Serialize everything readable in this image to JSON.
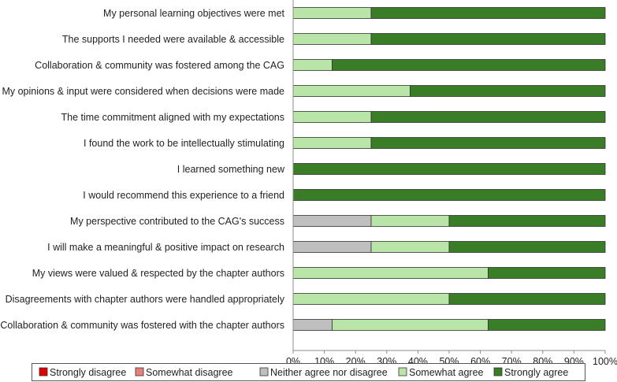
{
  "chart_data": {
    "type": "bar",
    "orientation": "horizontal",
    "stacked": true,
    "categories": [
      "My personal learning objectives were met",
      "The supports I needed were available & accessible",
      "Collaboration & community was fostered among the CAG",
      "My opinions & input were considered when decisions were made",
      "The time commitment aligned with my expectations",
      "I found the work to be intellectually stimulating",
      "I learned something new",
      "I would recommend this experience to a friend",
      "My perspective contributed to the CAG's success",
      "I will make a meaningful & positive impact on research",
      "My views were valued & respected by the chapter authors",
      "Disagreements with chapter authors were handled appropriately",
      "Collaboration & community was fostered with the chapter authors"
    ],
    "series": [
      {
        "name": "Strongly disagree",
        "color": "#e00000",
        "values": [
          0,
          0,
          0,
          0,
          0,
          0,
          0,
          0,
          0,
          0,
          0,
          0,
          0
        ]
      },
      {
        "name": "Somewhat disagree",
        "color": "#e88080",
        "values": [
          0,
          0,
          0,
          0,
          0,
          0,
          0,
          0,
          0,
          0,
          0,
          0,
          0
        ]
      },
      {
        "name": "Neither agree nor disagree",
        "color": "#bfbfbf",
        "values": [
          0,
          0,
          0,
          0,
          0,
          0,
          0,
          0,
          25,
          25,
          0,
          0,
          12.5
        ]
      },
      {
        "name": "Somewhat agree",
        "color": "#b9e6a8",
        "values": [
          25,
          25,
          12.5,
          37.5,
          25,
          25,
          0,
          0,
          25,
          25,
          62.5,
          50,
          50
        ]
      },
      {
        "name": "Strongly agree",
        "color": "#3a7d27",
        "values": [
          75,
          75,
          87.5,
          62.5,
          75,
          75,
          100,
          100,
          50,
          50,
          37.5,
          50,
          37.5
        ]
      }
    ],
    "xlim": [
      0,
      100
    ],
    "xticks": [
      "0%",
      "10%",
      "20%",
      "30%",
      "40%",
      "50%",
      "60%",
      "70%",
      "80%",
      "90%",
      "100%"
    ],
    "legend_position": "bottom",
    "title": "",
    "xlabel": "",
    "ylabel": ""
  }
}
